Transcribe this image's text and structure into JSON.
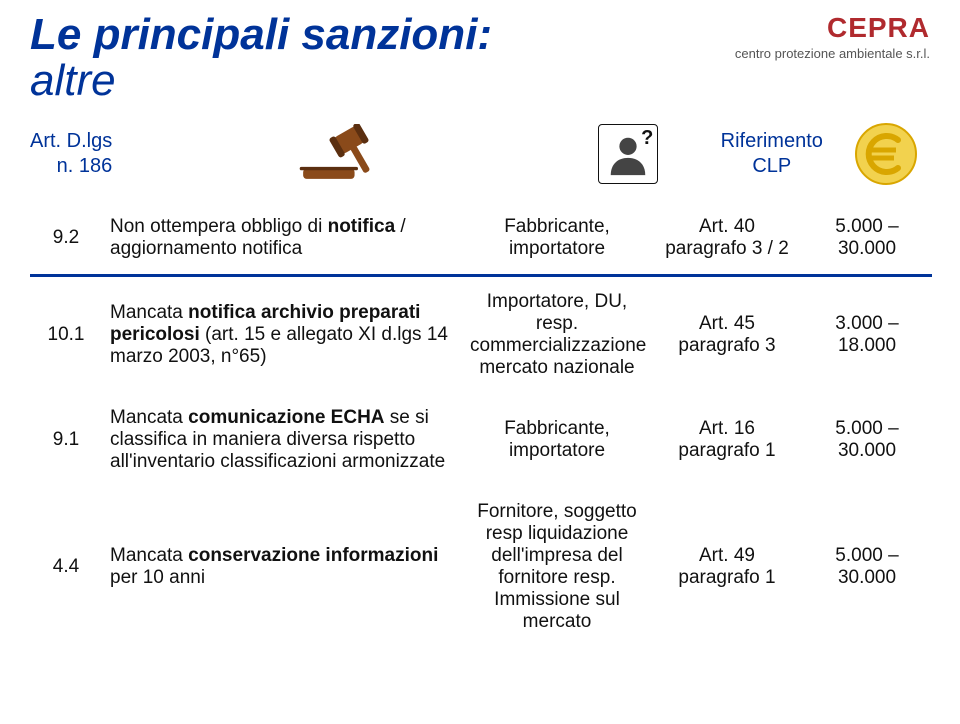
{
  "title": {
    "line1": "Le principali sanzioni:",
    "line2": "altre"
  },
  "logo": {
    "brand": "CEPRA",
    "tagline": "centro protezione ambientale s.r.l."
  },
  "head": {
    "col_a_line1": "Art. D.lgs",
    "col_a_line2": "n. 186",
    "clp_line1": "Riferimento",
    "clp_line2": "CLP"
  },
  "rows": [
    {
      "art": "9.2",
      "desc_parts": [
        {
          "t": "Non ottempera obbligo di ",
          "b": false
        },
        {
          "t": "notifica",
          "b": true
        },
        {
          "t": " / aggiornamento notifica",
          "b": false
        }
      ],
      "who": "Fabbricante, importatore",
      "ref": "Art. 40 paragrafo 3 / 2",
      "fine": "5.000 – 30.000",
      "sep": true
    },
    {
      "art": "10.1",
      "desc_parts": [
        {
          "t": "Mancata ",
          "b": false
        },
        {
          "t": "notifica archivio preparati pericolosi",
          "b": true
        },
        {
          "t": " (art. 15 e allegato XI d.lgs 14 marzo 2003, n°65)",
          "b": false
        }
      ],
      "who": "Importatore, DU, resp. commercializzazione mercato nazionale",
      "ref": "Art. 45 paragrafo 3",
      "fine": "3.000 – 18.000",
      "sep": false
    },
    {
      "art": "9.1",
      "desc_parts": [
        {
          "t": "Mancata ",
          "b": false
        },
        {
          "t": "comunicazione ECHA",
          "b": true
        },
        {
          "t": " se si classifica in maniera diversa rispetto all'inventario classificazioni armonizzate",
          "b": false
        }
      ],
      "who": "Fabbricante, importatore",
      "ref": "Art. 16 paragrafo 1",
      "fine": "5.000 – 30.000",
      "sep": false
    },
    {
      "art": "4.4",
      "desc_parts": [
        {
          "t": "Mancata ",
          "b": false
        },
        {
          "t": "conservazione informazioni",
          "b": true
        },
        {
          "t": " per 10 anni",
          "b": false
        }
      ],
      "who": "Fornitore, soggetto resp liquidazione dell'impresa del fornitore resp. Immissione sul mercato",
      "ref": "Art. 49 paragrafo 1",
      "fine": "5.000 – 30.000",
      "sep": false
    }
  ],
  "colors": {
    "brand_blue": "#003399",
    "brand_red": "#b02a2e",
    "euro_gold": "#f2d24e",
    "euro_stroke": "#d9a600",
    "gavel_wood": "#8a4a1a",
    "gavel_dark": "#5b2f10",
    "person_fill": "#444444"
  }
}
